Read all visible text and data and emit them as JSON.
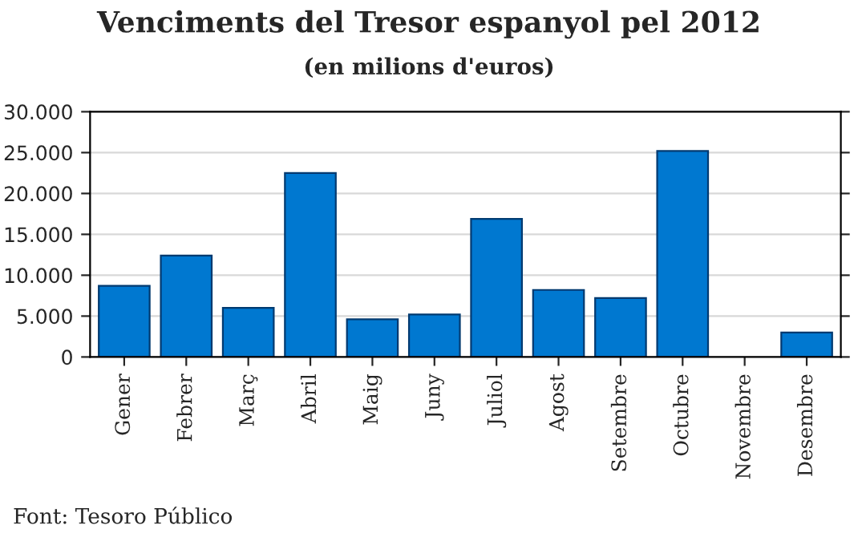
{
  "chart_data": {
    "type": "bar",
    "title": "Venciments del Tresor espanyol pel 2012",
    "subtitle": "(en milions d'euros)",
    "categories": [
      "Gener",
      "Febrer",
      "Març",
      "Abril",
      "Maig",
      "Juny",
      "Juliol",
      "Agost",
      "Setembre",
      "Octubre",
      "Novembre",
      "Desembre"
    ],
    "values": [
      8700,
      12400,
      6000,
      22500,
      4600,
      5200,
      16900,
      8200,
      7200,
      25200,
      0,
      3000
    ],
    "color": "#0078d0",
    "ylim": [
      0,
      30000
    ],
    "yticks": [
      {
        "value": 0,
        "label": "0"
      },
      {
        "value": 5000,
        "label": "5.000"
      },
      {
        "value": 10000,
        "label": "10.000"
      },
      {
        "value": 15000,
        "label": "15.000"
      },
      {
        "value": 20000,
        "label": "20.000"
      },
      {
        "value": 25000,
        "label": "25.000"
      },
      {
        "value": 30000,
        "label": "30.000"
      }
    ],
    "grid": "y",
    "annotations": [
      "Font: Tesoro Público"
    ]
  }
}
